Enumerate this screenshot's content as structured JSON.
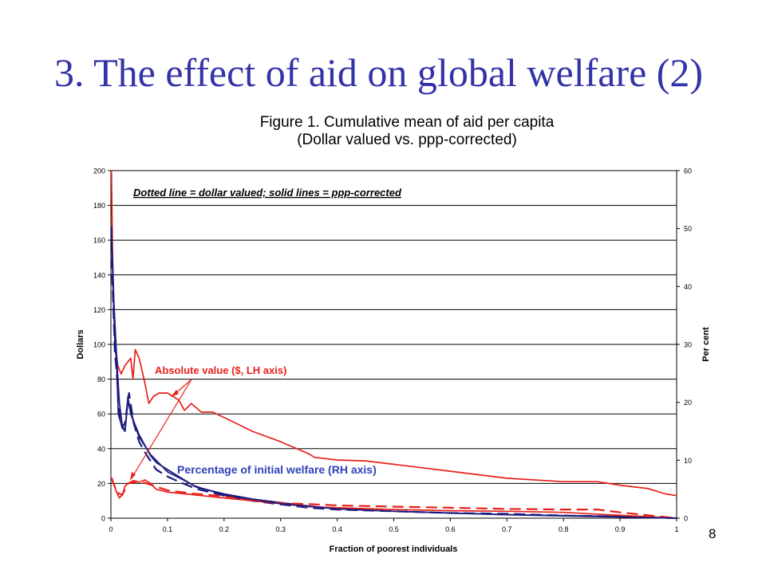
{
  "slide": {
    "title": "3. The effect of aid on global welfare (2)",
    "page_number": "8",
    "title_color": "#3333a8"
  },
  "chart_data": {
    "type": "line",
    "title": "Figure 1. Cumulative mean of aid per capita",
    "subtitle": "(Dollar valued vs. ppp-corrected)",
    "xlabel": "Fraction of poorest individuals",
    "ylabel": "Dollars",
    "ylabel_right": "Per cent",
    "xlim": [
      0,
      1
    ],
    "ylim": [
      0,
      200
    ],
    "ylim_right": [
      0,
      60
    ],
    "x_ticks": [
      "0",
      "0.1",
      "0.2",
      "0.3",
      "0.4",
      "0.5",
      "0.6",
      "0.7",
      "0.8",
      "0.9",
      "1"
    ],
    "y_ticks": [
      "0",
      "20",
      "40",
      "60",
      "80",
      "100",
      "120",
      "140",
      "160",
      "180",
      "200"
    ],
    "y_ticks_right": [
      "0",
      "10",
      "20",
      "30",
      "40",
      "50",
      "60"
    ],
    "grid": "horizontal",
    "colors": {
      "red": "#e8201a",
      "navy": "#1c1a7e"
    },
    "annotations": {
      "note": "Dotted line = dollar valued; solid lines = ppp-corrected",
      "absolute": "Absolute value ($, LH axis)",
      "percentage": "Percentage of initial welfare (RH axis)"
    },
    "series": [
      {
        "color": "red",
        "style": "solid",
        "axis": "left",
        "points": [
          [
            0.001,
            200
          ],
          [
            0.003,
            150
          ],
          [
            0.006,
            115
          ],
          [
            0.008,
            100
          ],
          [
            0.012,
            88
          ],
          [
            0.018,
            83
          ],
          [
            0.025,
            88
          ],
          [
            0.03,
            90
          ],
          [
            0.035,
            92
          ],
          [
            0.039,
            80
          ],
          [
            0.043,
            97
          ],
          [
            0.05,
            92
          ],
          [
            0.06,
            78
          ],
          [
            0.067,
            66
          ],
          [
            0.075,
            70
          ],
          [
            0.085,
            72
          ],
          [
            0.1,
            72
          ],
          [
            0.11,
            70
          ],
          [
            0.12,
            68
          ],
          [
            0.13,
            62
          ],
          [
            0.142,
            66
          ],
          [
            0.16,
            61
          ],
          [
            0.18,
            61
          ],
          [
            0.2,
            58
          ],
          [
            0.25,
            50
          ],
          [
            0.3,
            44
          ],
          [
            0.35,
            37
          ],
          [
            0.36,
            35
          ],
          [
            0.4,
            33.5
          ],
          [
            0.45,
            33
          ],
          [
            0.5,
            31
          ],
          [
            0.6,
            27
          ],
          [
            0.7,
            23
          ],
          [
            0.8,
            21
          ],
          [
            0.86,
            21
          ],
          [
            0.9,
            19
          ],
          [
            0.95,
            17
          ],
          [
            0.98,
            14
          ],
          [
            1,
            13
          ]
        ]
      },
      {
        "color": "navy",
        "style": "solid",
        "axis": "left",
        "points": [
          [
            0.001,
            168
          ],
          [
            0.004,
            130
          ],
          [
            0.007,
            100
          ],
          [
            0.01,
            90
          ],
          [
            0.013,
            60
          ],
          [
            0.02,
            52
          ],
          [
            0.025,
            50
          ],
          [
            0.03,
            67
          ],
          [
            0.04,
            56
          ],
          [
            0.05,
            48
          ],
          [
            0.06,
            42
          ],
          [
            0.07,
            36
          ],
          [
            0.08,
            32
          ],
          [
            0.1,
            28
          ],
          [
            0.12,
            24
          ],
          [
            0.15,
            18
          ],
          [
            0.2,
            14
          ],
          [
            0.25,
            11
          ],
          [
            0.3,
            9
          ],
          [
            0.35,
            7
          ],
          [
            0.4,
            5.5
          ],
          [
            0.5,
            4
          ],
          [
            0.6,
            3
          ],
          [
            0.7,
            2
          ],
          [
            0.8,
            1.5
          ],
          [
            0.9,
            1
          ],
          [
            1,
            0
          ]
        ]
      },
      {
        "color": "navy",
        "style": "dashed",
        "axis": "left",
        "points": [
          [
            0.001,
            150
          ],
          [
            0.004,
            125
          ],
          [
            0.007,
            95
          ],
          [
            0.01,
            85
          ],
          [
            0.015,
            60
          ],
          [
            0.02,
            52
          ],
          [
            0.025,
            55
          ],
          [
            0.032,
            72
          ],
          [
            0.04,
            55
          ],
          [
            0.05,
            44
          ],
          [
            0.06,
            38
          ],
          [
            0.07,
            33
          ],
          [
            0.08,
            28
          ],
          [
            0.1,
            24
          ],
          [
            0.12,
            21
          ],
          [
            0.15,
            17
          ],
          [
            0.2,
            13
          ],
          [
            0.25,
            10
          ],
          [
            0.3,
            8
          ],
          [
            0.35,
            6
          ],
          [
            0.4,
            5
          ],
          [
            0.5,
            4
          ],
          [
            0.6,
            3
          ],
          [
            0.7,
            2.5
          ],
          [
            0.8,
            1.5
          ],
          [
            0.9,
            1
          ],
          [
            1,
            0
          ]
        ]
      },
      {
        "color": "red",
        "style": "solid",
        "axis": "right",
        "points": [
          [
            0.001,
            7
          ],
          [
            0.005,
            6
          ],
          [
            0.01,
            4.5
          ],
          [
            0.015,
            3.5
          ],
          [
            0.02,
            4
          ],
          [
            0.025,
            5.5
          ],
          [
            0.03,
            6
          ],
          [
            0.04,
            6.5
          ],
          [
            0.05,
            6.2
          ],
          [
            0.06,
            6.6
          ],
          [
            0.07,
            6
          ],
          [
            0.08,
            5
          ],
          [
            0.1,
            4.5
          ],
          [
            0.15,
            4
          ],
          [
            0.2,
            3.5
          ],
          [
            0.25,
            3
          ],
          [
            0.3,
            2.5
          ],
          [
            0.35,
            2
          ],
          [
            0.4,
            1.8
          ],
          [
            0.5,
            1.5
          ],
          [
            0.6,
            1.3
          ],
          [
            0.7,
            1.2
          ],
          [
            0.8,
            1
          ],
          [
            0.9,
            0.5
          ],
          [
            1,
            0
          ]
        ]
      },
      {
        "color": "red",
        "style": "dashed",
        "axis": "right",
        "points": [
          [
            0.001,
            7
          ],
          [
            0.01,
            4.5
          ],
          [
            0.02,
            4
          ],
          [
            0.03,
            6
          ],
          [
            0.05,
            6.4
          ],
          [
            0.07,
            5.8
          ],
          [
            0.1,
            4.8
          ],
          [
            0.15,
            4.2
          ],
          [
            0.2,
            3.8
          ],
          [
            0.3,
            2.6
          ],
          [
            0.36,
            2.4
          ],
          [
            0.4,
            2.2
          ],
          [
            0.5,
            2
          ],
          [
            0.6,
            1.8
          ],
          [
            0.7,
            1.6
          ],
          [
            0.8,
            1.5
          ],
          [
            0.86,
            1.5
          ],
          [
            0.9,
            1
          ],
          [
            0.95,
            0.5
          ],
          [
            1,
            0
          ]
        ]
      },
      {
        "color": "navy",
        "style": "solid",
        "axis": "right",
        "points": [
          [
            0.001,
            50
          ],
          [
            0.005,
            38
          ],
          [
            0.01,
            28
          ],
          [
            0.015,
            20
          ],
          [
            0.02,
            16
          ],
          [
            0.025,
            15
          ],
          [
            0.03,
            21
          ],
          [
            0.035,
            18
          ],
          [
            0.05,
            14
          ],
          [
            0.07,
            11
          ],
          [
            0.1,
            8
          ],
          [
            0.15,
            5.5
          ],
          [
            0.2,
            4
          ],
          [
            0.3,
            2.5
          ],
          [
            0.4,
            1.6
          ],
          [
            0.5,
            1.2
          ],
          [
            0.6,
            0.9
          ],
          [
            0.7,
            0.6
          ],
          [
            0.8,
            0.4
          ],
          [
            0.9,
            0.2
          ],
          [
            1,
            0
          ]
        ]
      }
    ]
  }
}
